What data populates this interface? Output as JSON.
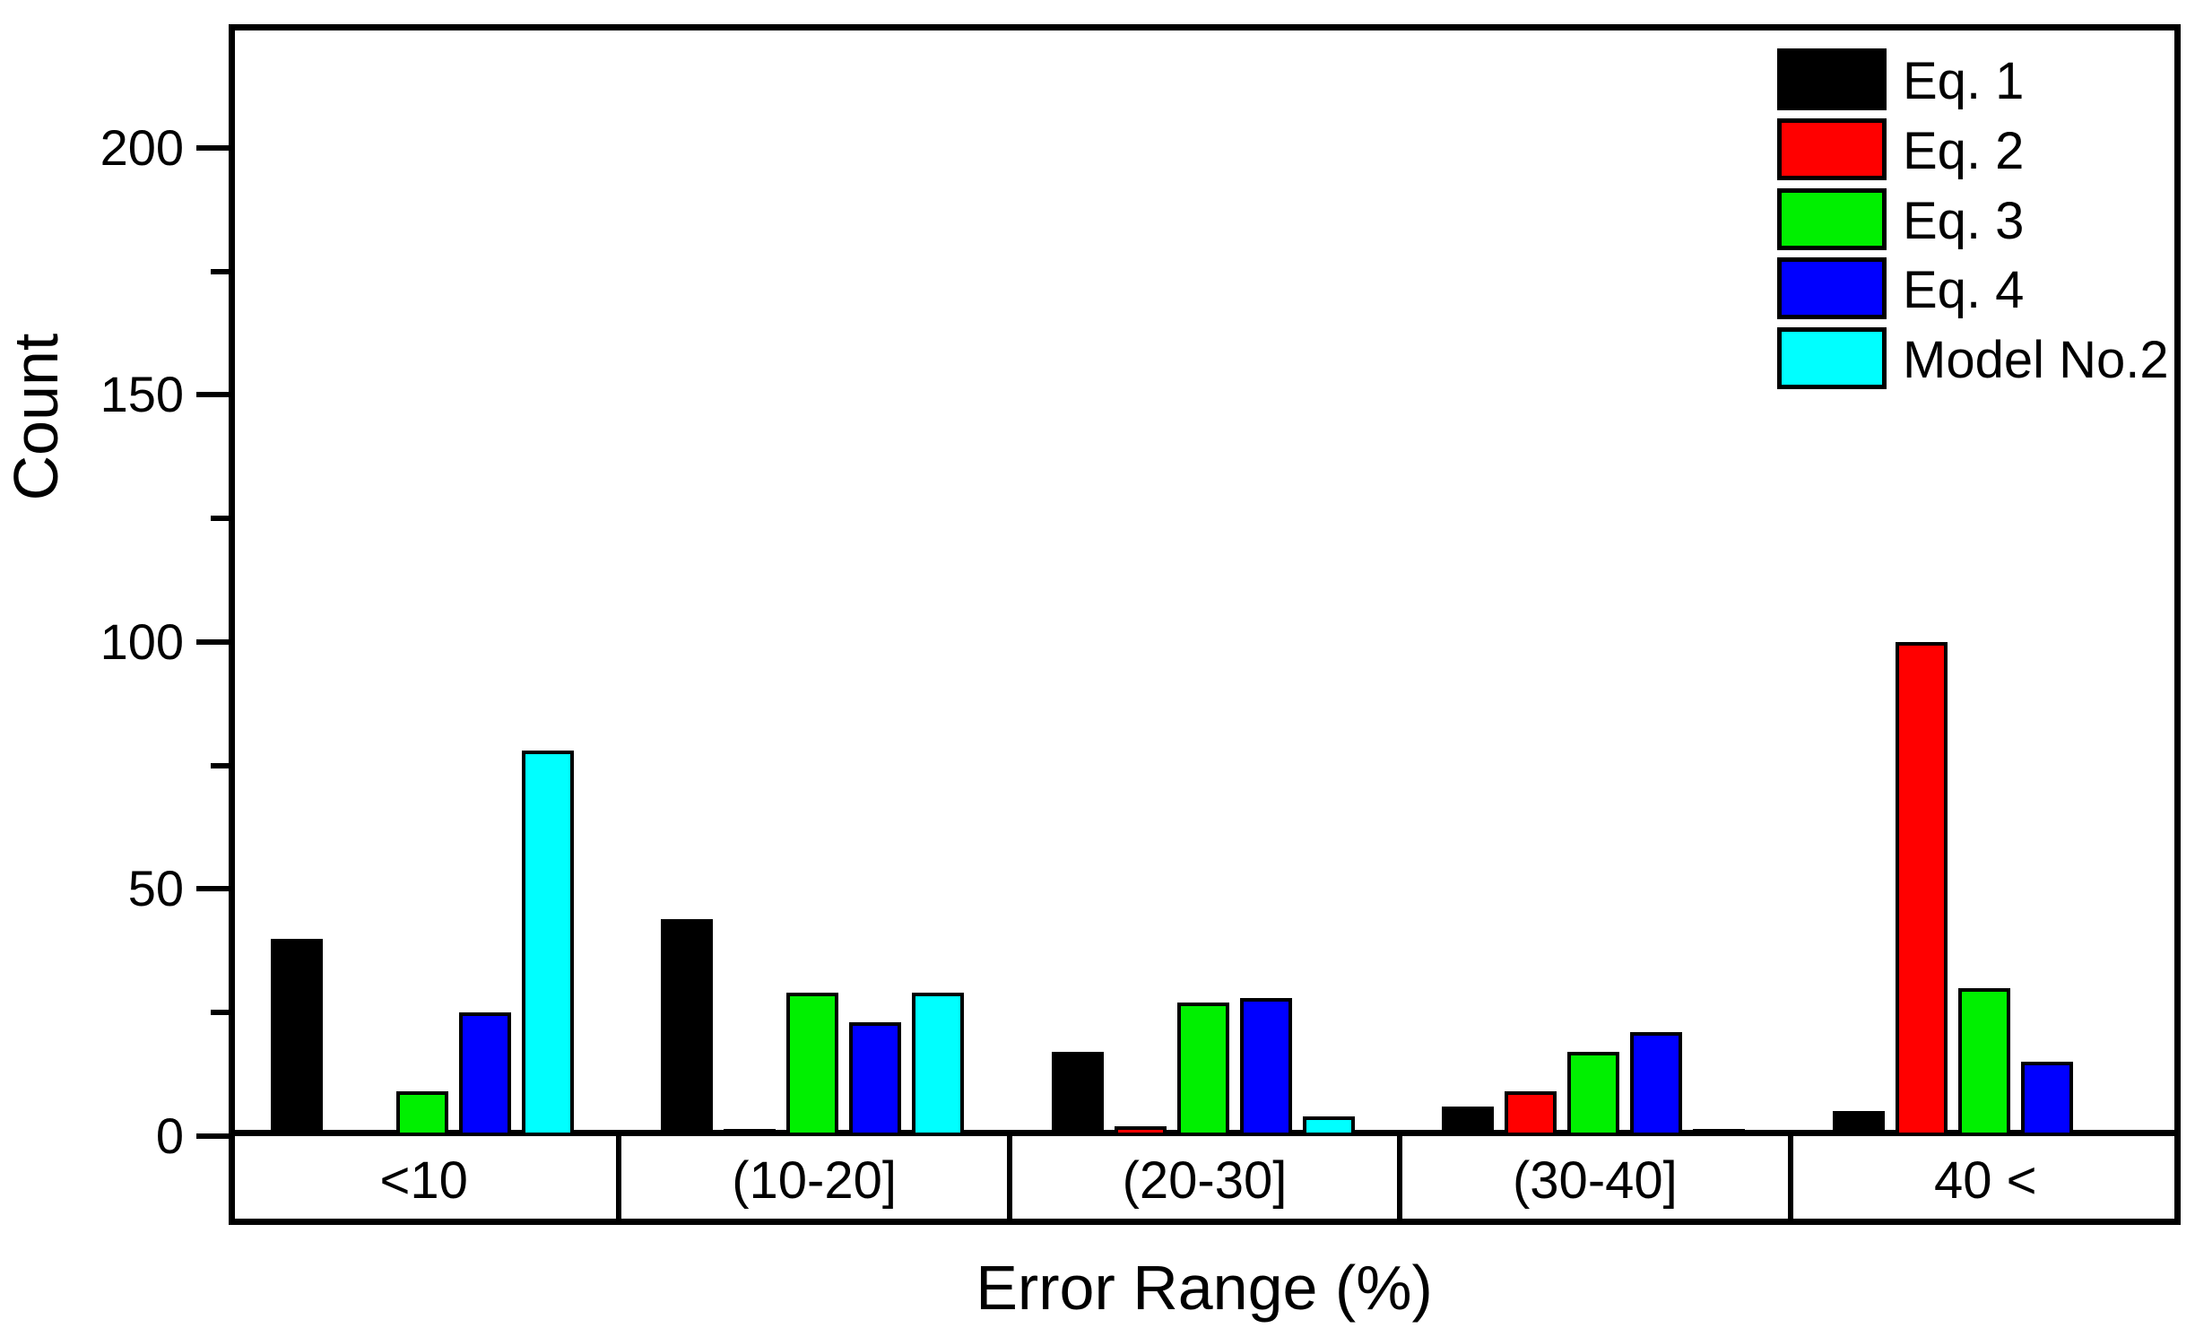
{
  "chart_data": {
    "type": "bar",
    "title": "",
    "xlabel": "Error Range (%)",
    "ylabel": "Count",
    "categories": [
      "<10",
      "(10-20]",
      "(20-30]",
      "(30-40]",
      "40 <"
    ],
    "series": [
      {
        "name": "Eq. 1",
        "color": "#000000",
        "values": [
          40,
          44,
          17,
          6,
          5
        ]
      },
      {
        "name": "Eq. 2",
        "color": "#ff0000",
        "values": [
          0,
          1,
          2,
          9,
          100
        ]
      },
      {
        "name": "Eq. 3",
        "color": "#00f000",
        "values": [
          9,
          29,
          27,
          17,
          30
        ]
      },
      {
        "name": "Eq. 4",
        "color": "#0000ff",
        "values": [
          25,
          23,
          28,
          21,
          15
        ]
      },
      {
        "name": "Model No.2",
        "color": "#00ffff",
        "values": [
          78,
          29,
          4,
          1,
          0
        ]
      }
    ],
    "y_axis": {
      "min": 0,
      "max": 225,
      "major_ticks": [
        0,
        50,
        100,
        150,
        200
      ],
      "minor_ticks": [
        25,
        75,
        125,
        175
      ]
    },
    "legend_position": "top-right-inside",
    "grid": false,
    "bar_outline_color": "#000000",
    "background_color": "#ffffff"
  }
}
